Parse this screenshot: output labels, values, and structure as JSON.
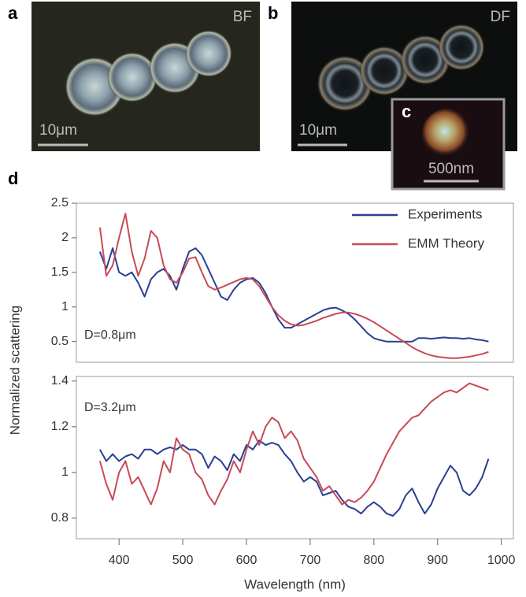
{
  "panels": {
    "a": {
      "label": "a",
      "mode": "BF",
      "scale": "10μm"
    },
    "b": {
      "label": "b",
      "mode": "DF",
      "scale": "10μm"
    },
    "c": {
      "label": "c",
      "scale": "500nm"
    },
    "d": {
      "label": "d"
    }
  },
  "ylabel": "Normalized scattering",
  "chart_data": [
    {
      "type": "line",
      "annotation": "D=0.8μm",
      "legend": "top-right",
      "xlim": [
        333,
        1019
      ],
      "ylim": [
        0.2,
        2.5
      ],
      "yticks": [
        0.5,
        1,
        1.5,
        2,
        2.5
      ],
      "x": [
        370,
        380,
        390,
        400,
        410,
        420,
        430,
        440,
        450,
        460,
        470,
        480,
        490,
        500,
        510,
        520,
        530,
        540,
        550,
        560,
        570,
        580,
        590,
        600,
        610,
        620,
        630,
        640,
        650,
        660,
        670,
        680,
        690,
        700,
        710,
        720,
        730,
        740,
        750,
        760,
        770,
        780,
        790,
        800,
        810,
        820,
        830,
        840,
        850,
        860,
        870,
        880,
        890,
        900,
        910,
        920,
        930,
        940,
        950,
        960,
        970,
        980
      ],
      "series": [
        {
          "name": "Experiments",
          "color": "#2a3f93",
          "values": [
            1.8,
            1.55,
            1.85,
            1.5,
            1.45,
            1.5,
            1.35,
            1.15,
            1.4,
            1.5,
            1.55,
            1.45,
            1.25,
            1.55,
            1.8,
            1.85,
            1.75,
            1.55,
            1.35,
            1.15,
            1.1,
            1.25,
            1.35,
            1.4,
            1.42,
            1.35,
            1.2,
            1.0,
            0.82,
            0.7,
            0.7,
            0.75,
            0.8,
            0.85,
            0.9,
            0.95,
            0.98,
            0.99,
            0.95,
            0.9,
            0.82,
            0.72,
            0.62,
            0.55,
            0.52,
            0.5,
            0.5,
            0.5,
            0.5,
            0.5,
            0.55,
            0.55,
            0.54,
            0.55,
            0.56,
            0.55,
            0.55,
            0.54,
            0.55,
            0.53,
            0.52,
            0.5
          ]
        },
        {
          "name": "EMM Theory",
          "color": "#c84a55",
          "values": [
            2.15,
            1.45,
            1.6,
            2.0,
            2.35,
            1.8,
            1.45,
            1.7,
            2.1,
            2.0,
            1.6,
            1.4,
            1.35,
            1.5,
            1.7,
            1.72,
            1.5,
            1.3,
            1.25,
            1.28,
            1.32,
            1.36,
            1.4,
            1.42,
            1.4,
            1.3,
            1.15,
            1.0,
            0.88,
            0.8,
            0.75,
            0.73,
            0.74,
            0.77,
            0.8,
            0.84,
            0.87,
            0.9,
            0.92,
            0.92,
            0.9,
            0.87,
            0.83,
            0.78,
            0.72,
            0.66,
            0.6,
            0.54,
            0.48,
            0.42,
            0.37,
            0.33,
            0.3,
            0.28,
            0.27,
            0.26,
            0.26,
            0.27,
            0.28,
            0.3,
            0.32,
            0.35
          ]
        }
      ]
    },
    {
      "type": "line",
      "annotation": "D=3.2μm",
      "xlabel": "Wavelength (nm)",
      "xlim": [
        333,
        1019
      ],
      "xticks": [
        400,
        500,
        600,
        700,
        800,
        900,
        1000
      ],
      "ylim": [
        0.71,
        1.42
      ],
      "yticks": [
        0.8,
        1,
        1.2,
        1.4
      ],
      "x": [
        370,
        380,
        390,
        400,
        410,
        420,
        430,
        440,
        450,
        460,
        470,
        480,
        490,
        500,
        510,
        520,
        530,
        540,
        550,
        560,
        570,
        580,
        590,
        600,
        610,
        620,
        630,
        640,
        650,
        660,
        670,
        680,
        690,
        700,
        710,
        720,
        730,
        740,
        750,
        760,
        770,
        780,
        790,
        800,
        810,
        820,
        830,
        840,
        850,
        860,
        870,
        880,
        890,
        900,
        910,
        920,
        930,
        940,
        950,
        960,
        970,
        980
      ],
      "series": [
        {
          "color": "#2a3f93",
          "values": [
            1.1,
            1.05,
            1.08,
            1.05,
            1.07,
            1.08,
            1.06,
            1.1,
            1.1,
            1.08,
            1.1,
            1.11,
            1.1,
            1.12,
            1.1,
            1.1,
            1.08,
            1.02,
            1.07,
            1.05,
            1.01,
            1.08,
            1.05,
            1.12,
            1.1,
            1.14,
            1.12,
            1.13,
            1.12,
            1.08,
            1.05,
            1.0,
            0.96,
            0.98,
            0.96,
            0.9,
            0.91,
            0.92,
            0.88,
            0.85,
            0.84,
            0.82,
            0.85,
            0.87,
            0.85,
            0.82,
            0.81,
            0.84,
            0.9,
            0.93,
            0.87,
            0.82,
            0.86,
            0.93,
            0.98,
            1.03,
            1.0,
            0.92,
            0.9,
            0.93,
            0.98,
            1.06
          ]
        },
        {
          "color": "#c84a55",
          "values": [
            1.05,
            0.95,
            0.88,
            1.0,
            1.05,
            0.95,
            0.98,
            0.92,
            0.86,
            0.93,
            1.05,
            1.0,
            1.15,
            1.1,
            1.08,
            1.0,
            0.97,
            0.9,
            0.86,
            0.92,
            0.97,
            1.05,
            1.0,
            1.1,
            1.18,
            1.12,
            1.2,
            1.24,
            1.22,
            1.15,
            1.18,
            1.14,
            1.06,
            1.02,
            0.98,
            0.92,
            0.94,
            0.9,
            0.86,
            0.88,
            0.87,
            0.89,
            0.92,
            0.96,
            1.02,
            1.08,
            1.13,
            1.18,
            1.21,
            1.24,
            1.25,
            1.28,
            1.31,
            1.33,
            1.35,
            1.36,
            1.35,
            1.37,
            1.39,
            1.38,
            1.37,
            1.36
          ]
        }
      ]
    }
  ]
}
